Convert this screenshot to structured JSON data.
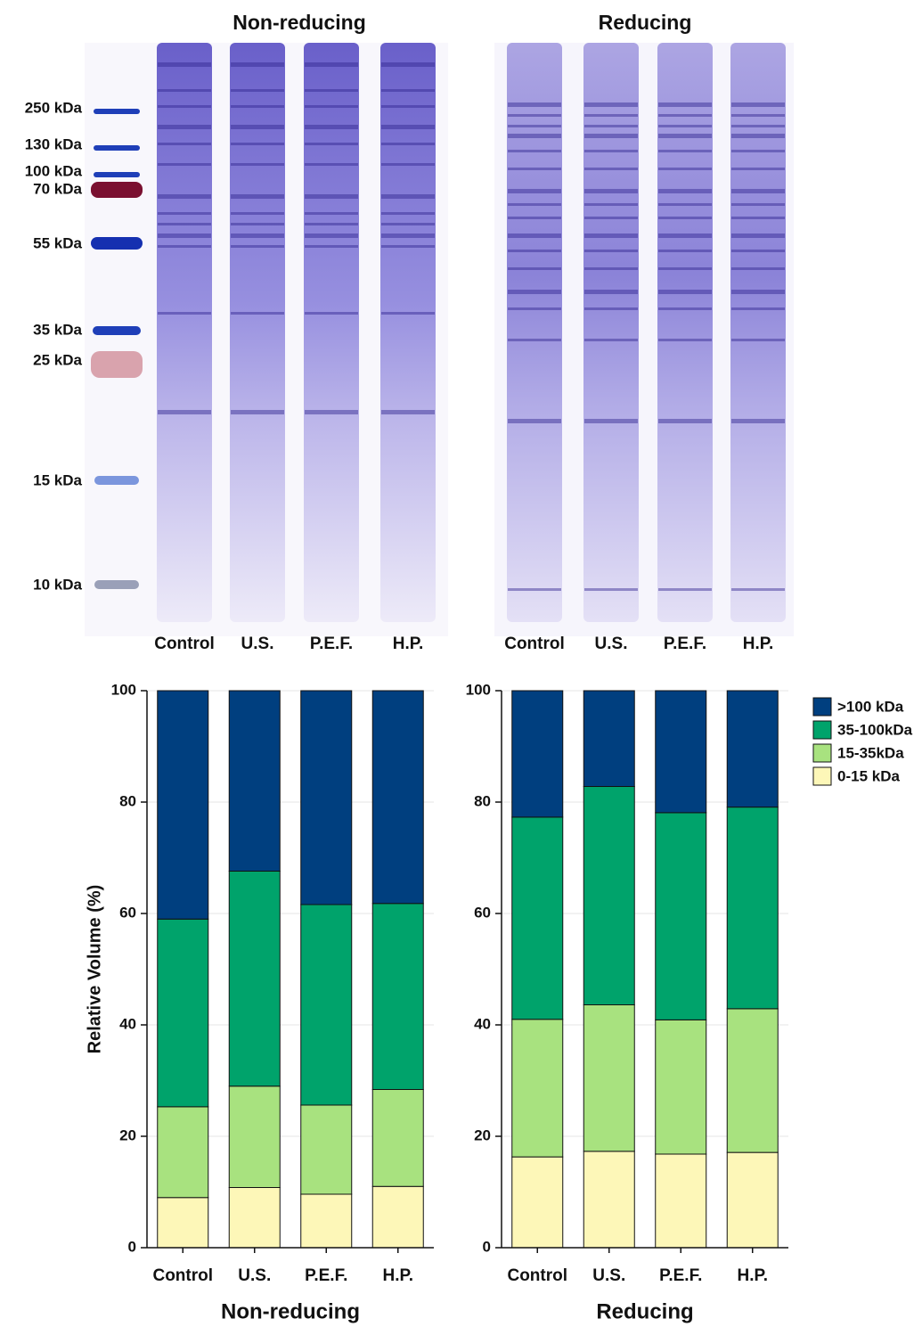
{
  "gel": {
    "markers": [
      "250 kDa",
      "130 kDa",
      "100 kDa",
      "70 kDa",
      "55 kDa",
      "35 kDa",
      "25 kDa",
      "15 kDa",
      "10 kDa"
    ],
    "panels": [
      {
        "title": "Non-reducing",
        "lanes": [
          "Control",
          "U.S.",
          "P.E.F.",
          "H.P."
        ]
      },
      {
        "title": "Reducing",
        "lanes": [
          "Control",
          "U.S.",
          "P.E.F.",
          "H.P."
        ]
      }
    ]
  },
  "chart_data": [
    {
      "type": "bar",
      "stacked": true,
      "xlabel": "Non-reducing",
      "ylabel": "Relative Volume (%)",
      "categories": [
        "Control",
        "U.S.",
        "P.E.F.",
        "H.P."
      ],
      "series": [
        {
          "name": "0-15 kDa",
          "color": "#fdf7b8",
          "values": [
            9,
            10.8,
            9.6,
            11
          ]
        },
        {
          "name": "15-35kDa",
          "color": "#a8e27f",
          "values": [
            16.3,
            18.2,
            16,
            17.4
          ]
        },
        {
          "name": "35-100kDa",
          "color": "#00a36b",
          "values": [
            33.7,
            38.6,
            36,
            33.4
          ]
        },
        {
          "name": ">100 kDa",
          "color": "#003f7f",
          "values": [
            41,
            32.4,
            38.4,
            38.2
          ]
        }
      ],
      "ylim": [
        0,
        100
      ],
      "yticks": [
        0,
        20,
        40,
        60,
        80,
        100
      ],
      "grid": true
    },
    {
      "type": "bar",
      "stacked": true,
      "xlabel": "Reducing",
      "legend": "outside-right",
      "categories": [
        "Control",
        "U.S.",
        "P.E.F.",
        "H.P."
      ],
      "series": [
        {
          "name": "0-15 kDa",
          "color": "#fdf7b8",
          "values": [
            16.3,
            17.3,
            16.8,
            17.1
          ]
        },
        {
          "name": "15-35kDa",
          "color": "#a8e27f",
          "values": [
            24.7,
            26.3,
            24.1,
            25.8
          ]
        },
        {
          "name": "35-100kDa",
          "color": "#00a36b",
          "values": [
            36.3,
            39.2,
            37.2,
            36.2
          ]
        },
        {
          "name": ">100 kDa",
          "color": "#003f7f",
          "values": [
            22.7,
            17.2,
            21.9,
            20.9
          ]
        }
      ],
      "ylim": [
        0,
        100
      ],
      "yticks": [
        0,
        20,
        40,
        60,
        80,
        100
      ],
      "grid": true
    }
  ]
}
